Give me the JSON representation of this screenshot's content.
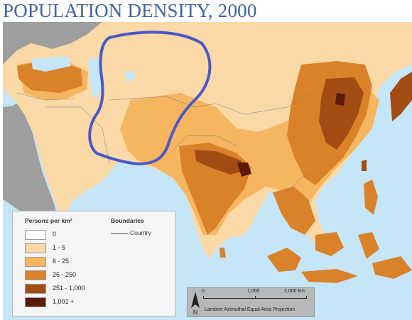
{
  "title": "POPULATION DENSITY, 2000",
  "legend": {
    "heading": "Persons per km²",
    "classes": [
      {
        "label": "0",
        "color": "#ffffff"
      },
      {
        "label": "1 - 5",
        "color": "#fbd9a6"
      },
      {
        "label": "6 - 25",
        "color": "#f6b55f"
      },
      {
        "label": "26 - 250",
        "color": "#d9822a"
      },
      {
        "label": "251 - 1,000",
        "color": "#a14c12"
      },
      {
        "label": "1,001 +",
        "color": "#5b1a06"
      }
    ],
    "boundaries_heading": "Boundaries",
    "boundary_country": "Country"
  },
  "scale": {
    "ticks": [
      "0",
      "1,000",
      "2,000 km"
    ],
    "projection": "Lambert Azimuthal Equal Area Projection",
    "north_label": "N"
  },
  "colors": {
    "water": "#c5e6f6",
    "outside_land": "#9e9e9e",
    "annotation": "#4a58c8"
  }
}
